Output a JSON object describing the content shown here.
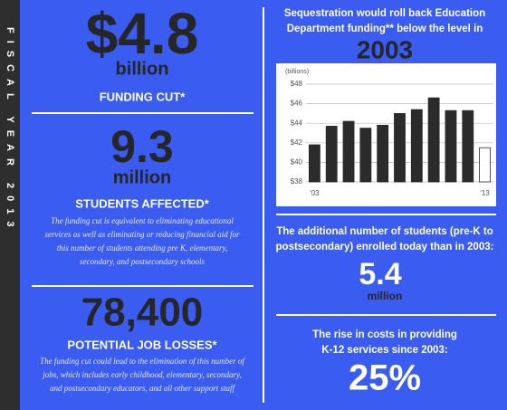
{
  "sidebar": "FISCAL YEAR 2013",
  "left": {
    "stats": [
      {
        "value": "$4.8",
        "unit": "billion",
        "label": "FUNDING CUT*"
      },
      {
        "value": "9.3",
        "unit": "million",
        "label": "STUDENTS AFFECTED*",
        "note": [
          "The funding cut is equivalent to eliminating educational",
          "services as well as eliminating or reducing financial aid for",
          "this number of students attending pre K, elementary,",
          "secondary, and postsecondary schools"
        ]
      },
      {
        "value": "78,400",
        "label": "POTENTIAL JOB LOSSES*",
        "note": [
          "The funding cut could lead to the elimination of this number of",
          "jobs, which includes early childhood, elementary, secondary,",
          "and postsecondary educators, and all other support staff"
        ]
      }
    ]
  },
  "chart_data": {
    "type": "bar",
    "title": [
      "Sequestration would roll back Education",
      "Department funding** below the level in"
    ],
    "subtitle": "2003",
    "ylabel": "(billions)",
    "categories": [
      "'03",
      null,
      null,
      null,
      null,
      null,
      null,
      null,
      null,
      null,
      "'13"
    ],
    "values": [
      41.8,
      43.7,
      44.2,
      43.5,
      43.8,
      45.0,
      45.4,
      46.6,
      45.3,
      45.3,
      41.5
    ],
    "colors": [
      "#2b2b2b",
      "#2b2b2b",
      "#2b2b2b",
      "#2b2b2b",
      "#2b2b2b",
      "#2b2b2b",
      "#2b2b2b",
      "#2b2b2b",
      "#2b2b2b",
      "#2b2b2b",
      "#ffffff"
    ],
    "ylim": [
      38,
      48
    ],
    "yticks": [
      {
        "value": 38,
        "label": "$38"
      },
      {
        "value": 40,
        "label": "$40"
      },
      {
        "value": 42,
        "label": "$42"
      },
      {
        "value": 44,
        "label": "$44"
      },
      {
        "value": 46,
        "label": "$46"
      },
      {
        "value": 48,
        "label": "$48"
      }
    ],
    "grid": true
  },
  "right": {
    "stats": [
      {
        "text": [
          "The additional number of students (pre-K to",
          "postsecondary) enrolled today than in 2003:"
        ],
        "value": "5.4",
        "unit": "million"
      },
      {
        "text": [
          "The rise in costs in providing",
          "K-12 services since 2003:"
        ],
        "value": "25%"
      }
    ]
  }
}
